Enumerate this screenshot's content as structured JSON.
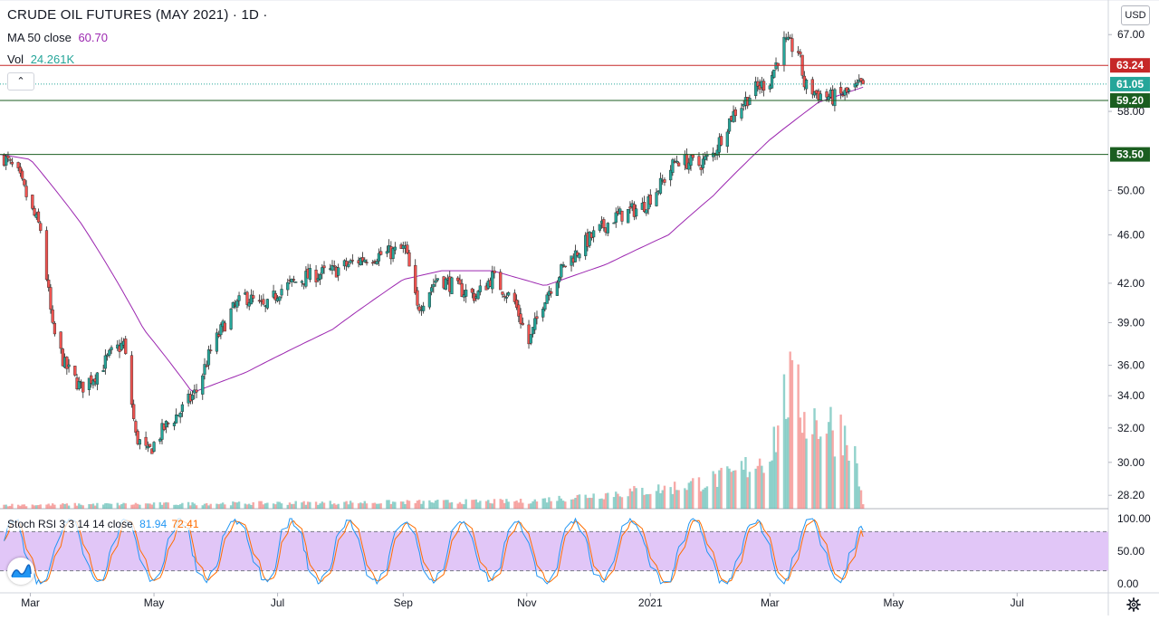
{
  "header": {
    "title": "CRUDE OIL FUTURES (MAY 2021) · 1D ·",
    "ma_label": "MA 50 close",
    "ma_value": "60.70",
    "vol_label": "Vol",
    "vol_value": "24.261K"
  },
  "currency": "USD",
  "collapse_glyph": "⌃",
  "colors": {
    "up": "#26a69a",
    "down": "#ef5350",
    "ma": "#9c27b0",
    "stoch_k": "#2196f3",
    "stoch_d": "#ff6d00",
    "stoch_band": "#e1c6f7",
    "resistance": "#c62828",
    "support": "#1b5e20"
  },
  "price_axis": {
    "ticks": [
      "67.00",
      "61.05",
      "58.00",
      "53.50",
      "50.00",
      "46.00",
      "42.00",
      "39.00",
      "36.00",
      "34.00",
      "32.00",
      "30.00",
      "28.20"
    ],
    "scale": "log"
  },
  "price_labels": {
    "resistance": "63.24",
    "last": "61.05",
    "support_high": "59.20",
    "support_low": "53.50"
  },
  "stoch": {
    "label": "Stoch RSI 3 3 14 14 close",
    "k_value": "81.94",
    "d_value": "72.41",
    "ticks": [
      "100.00",
      "50.00",
      "0.00"
    ]
  },
  "time_axis": [
    "Mar",
    "May",
    "Jul",
    "Sep",
    "Nov",
    "2021",
    "Mar",
    "May",
    "Jul"
  ],
  "chart_data": {
    "type": "candlestick",
    "title": "CRUDE OIL FUTURES (MAY 2021)",
    "interval": "1D",
    "y_range": [
      27.5,
      71.5
    ],
    "y_scale": "log",
    "x_range": [
      "2020-02-15",
      "2021-08-15"
    ],
    "horizontal_lines": [
      63.24,
      59.2,
      53.5
    ],
    "last_price": 61.05,
    "ma_period": 50,
    "ma_last": 60.7,
    "volume_last": "24.261K",
    "price_path": [
      {
        "date": "2020-02-17",
        "close": 53.2
      },
      {
        "date": "2020-02-24",
        "close": 51.5
      },
      {
        "date": "2020-03-02",
        "close": 48.0
      },
      {
        "date": "2020-03-06",
        "close": 46.5
      },
      {
        "date": "2020-03-12",
        "close": 38.5
      },
      {
        "date": "2020-03-18",
        "close": 36.0
      },
      {
        "date": "2020-03-26",
        "close": 34.5
      },
      {
        "date": "2020-04-03",
        "close": 35.5
      },
      {
        "date": "2020-04-10",
        "close": 36.8
      },
      {
        "date": "2020-04-16",
        "close": 37.5
      },
      {
        "date": "2020-04-22",
        "close": 31.5
      },
      {
        "date": "2020-04-28",
        "close": 30.5
      },
      {
        "date": "2020-05-06",
        "close": 32.0
      },
      {
        "date": "2020-05-14",
        "close": 33.0
      },
      {
        "date": "2020-05-22",
        "close": 34.3
      },
      {
        "date": "2020-05-29",
        "close": 37.0
      },
      {
        "date": "2020-06-08",
        "close": 39.8
      },
      {
        "date": "2020-06-15",
        "close": 41.0
      },
      {
        "date": "2020-06-25",
        "close": 40.0
      },
      {
        "date": "2020-07-02",
        "close": 41.5
      },
      {
        "date": "2020-07-15",
        "close": 42.5
      },
      {
        "date": "2020-07-29",
        "close": 43.0
      },
      {
        "date": "2020-08-12",
        "close": 44.0
      },
      {
        "date": "2020-08-26",
        "close": 44.5
      },
      {
        "date": "2020-09-02",
        "close": 44.8
      },
      {
        "date": "2020-09-08",
        "close": 40.0
      },
      {
        "date": "2020-09-18",
        "close": 42.5
      },
      {
        "date": "2020-09-29",
        "close": 41.5
      },
      {
        "date": "2020-10-07",
        "close": 41.0
      },
      {
        "date": "2020-10-15",
        "close": 42.5
      },
      {
        "date": "2020-10-26",
        "close": 40.5
      },
      {
        "date": "2020-11-02",
        "close": 37.5
      },
      {
        "date": "2020-11-10",
        "close": 41.0
      },
      {
        "date": "2020-11-20",
        "close": 43.5
      },
      {
        "date": "2020-12-01",
        "close": 45.5
      },
      {
        "date": "2020-12-14",
        "close": 47.5
      },
      {
        "date": "2020-12-28",
        "close": 48.5
      },
      {
        "date": "2021-01-06",
        "close": 50.5
      },
      {
        "date": "2021-01-14",
        "close": 53.0
      },
      {
        "date": "2021-01-25",
        "close": 52.5
      },
      {
        "date": "2021-02-01",
        "close": 53.5
      },
      {
        "date": "2021-02-10",
        "close": 57.5
      },
      {
        "date": "2021-02-22",
        "close": 60.5
      },
      {
        "date": "2021-03-01",
        "close": 61.5
      },
      {
        "date": "2021-03-08",
        "close": 66.0
      },
      {
        "date": "2021-03-15",
        "close": 65.0
      },
      {
        "date": "2021-03-18",
        "close": 61.0
      },
      {
        "date": "2021-03-24",
        "close": 60.0
      },
      {
        "date": "2021-04-01",
        "close": 59.5
      },
      {
        "date": "2021-04-08",
        "close": 60.0
      },
      {
        "date": "2021-04-16",
        "close": 61.05
      }
    ],
    "ma_path": [
      {
        "date": "2020-02-15",
        "value": 53.5
      },
      {
        "date": "2020-03-01",
        "value": 53.0
      },
      {
        "date": "2020-03-26",
        "value": 47.0
      },
      {
        "date": "2020-04-26",
        "value": 38.5
      },
      {
        "date": "2020-05-20",
        "value": 34.2
      },
      {
        "date": "2020-06-15",
        "value": 35.5
      },
      {
        "date": "2020-07-28",
        "value": 38.5
      },
      {
        "date": "2020-09-01",
        "value": 42.3
      },
      {
        "date": "2020-09-20",
        "value": 43.0
      },
      {
        "date": "2020-10-15",
        "value": 43.0
      },
      {
        "date": "2020-11-10",
        "value": 41.8
      },
      {
        "date": "2020-12-10",
        "value": 43.5
      },
      {
        "date": "2021-01-10",
        "value": 46.0
      },
      {
        "date": "2021-02-01",
        "value": 49.5
      },
      {
        "date": "2021-03-01",
        "value": 55.0
      },
      {
        "date": "2021-03-25",
        "value": 59.0
      },
      {
        "date": "2021-04-16",
        "value": 60.7
      }
    ],
    "volume_path": [
      {
        "date": "2020-02-15",
        "value": 0.4
      },
      {
        "date": "2020-11-01",
        "value": 0.8
      },
      {
        "date": "2021-01-10",
        "value": 2.2
      },
      {
        "date": "2021-02-10",
        "value": 3.5
      },
      {
        "date": "2021-03-01",
        "value": 6.0
      },
      {
        "date": "2021-03-10",
        "value": 13.0
      },
      {
        "date": "2021-03-20",
        "value": 10.0
      },
      {
        "date": "2021-04-10",
        "value": 8.0
      },
      {
        "date": "2021-04-16",
        "value": 0.5
      }
    ],
    "stoch_rsi": {
      "range": [
        0,
        100
      ],
      "band": [
        20,
        80
      ],
      "k_last": 81.94,
      "d_last": 72.41
    }
  }
}
